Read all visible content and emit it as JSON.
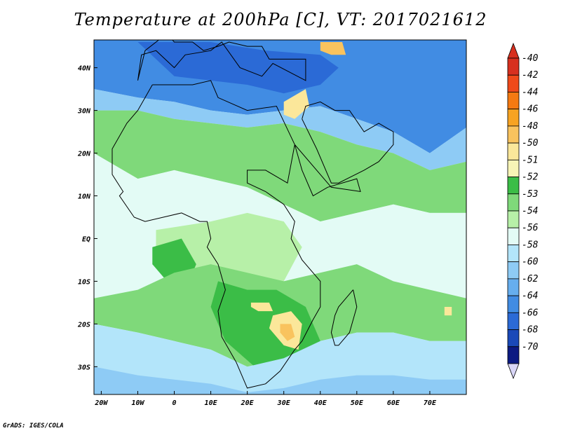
{
  "title": "Temperature at 200hPa [C], VT: 2017021612",
  "credit": "GrADS: IGES/COLA",
  "map": {
    "lon_range": [
      -22,
      80
    ],
    "lat_range": [
      -36.5,
      46.5
    ],
    "lon_ticks": [
      {
        "lon": -20,
        "label": "20W"
      },
      {
        "lon": -10,
        "label": "10W"
      },
      {
        "lon": 0,
        "label": "0"
      },
      {
        "lon": 10,
        "label": "10E"
      },
      {
        "lon": 20,
        "label": "20E"
      },
      {
        "lon": 30,
        "label": "30E"
      },
      {
        "lon": 40,
        "label": "40E"
      },
      {
        "lon": 50,
        "label": "50E"
      },
      {
        "lon": 60,
        "label": "60E"
      },
      {
        "lon": 70,
        "label": "70E"
      }
    ],
    "lat_ticks": [
      {
        "lat": 40,
        "label": "40N"
      },
      {
        "lat": 30,
        "label": "30N"
      },
      {
        "lat": 20,
        "label": "20N"
      },
      {
        "lat": 10,
        "label": "10N"
      },
      {
        "lat": 0,
        "label": "EQ"
      },
      {
        "lat": -10,
        "label": "10S"
      },
      {
        "lat": -20,
        "label": "20S"
      },
      {
        "lat": -30,
        "label": "30S"
      }
    ]
  },
  "colorbar": {
    "levels": [
      {
        "label": "-40",
        "color": "#d7301f"
      },
      {
        "label": "-42",
        "color": "#ef4a1a"
      },
      {
        "label": "-44",
        "color": "#f57a12"
      },
      {
        "label": "-46",
        "color": "#f7a322"
      },
      {
        "label": "-48",
        "color": "#f9c35e"
      },
      {
        "label": "-50",
        "color": "#fbe79a"
      },
      {
        "label": "-51",
        "color": "#f7f4b6"
      },
      {
        "label": "-52",
        "color": "#3bbd47"
      },
      {
        "label": "-53",
        "color": "#7fd97a"
      },
      {
        "label": "-54",
        "color": "#b7f0a8"
      },
      {
        "label": "-56",
        "color": "#e3fbf5"
      },
      {
        "label": "-58",
        "color": "#b3e5fa"
      },
      {
        "label": "-60",
        "color": "#8ecbf5"
      },
      {
        "label": "-62",
        "color": "#66aeee"
      },
      {
        "label": "-64",
        "color": "#418ce3"
      },
      {
        "label": "-66",
        "color": "#2b6ad6"
      },
      {
        "label": "-68",
        "color": "#1a49b8"
      },
      {
        "label": "-70",
        "color": "#0c1a82"
      }
    ],
    "top_arrow_color": "#d7301f",
    "bottom_arrow_color": "#d9d6f7"
  },
  "regions": [
    {
      "name": "north-blue-band",
      "level": "-64",
      "lon": [
        -22,
        80,
        80,
        70,
        60,
        50,
        40,
        30,
        20,
        10,
        0,
        -10,
        -22
      ],
      "lat": [
        46.5,
        46.5,
        26,
        20,
        25,
        28,
        31,
        30,
        29,
        30,
        32,
        33,
        35
      ]
    },
    {
      "name": "north-deep-blue",
      "level": "-66",
      "lon": [
        -10,
        10,
        25,
        40,
        45,
        40,
        30,
        20,
        10,
        0,
        -5
      ],
      "lat": [
        46,
        46,
        44,
        43,
        40,
        36,
        34,
        36,
        37,
        38,
        42
      ]
    },
    {
      "name": "north-light-blue",
      "level": "-60",
      "lon": [
        -22,
        -10,
        0,
        10,
        20,
        30,
        40,
        50,
        60,
        70,
        80,
        80,
        70,
        60,
        50,
        40,
        30,
        20,
        10,
        0,
        -10,
        -22
      ],
      "lat": [
        35,
        33,
        32,
        30,
        29,
        30,
        31,
        28,
        25,
        20,
        26,
        18,
        16,
        20,
        22,
        25,
        27,
        26,
        27,
        28,
        30,
        30
      ]
    },
    {
      "name": "sahel-green-band",
      "level": "-53",
      "lon": [
        -22,
        -10,
        0,
        10,
        20,
        30,
        40,
        50,
        60,
        70,
        80,
        80,
        70,
        60,
        50,
        40,
        30,
        20,
        10,
        0,
        -10,
        -22
      ],
      "lat": [
        30,
        30,
        28,
        27,
        26,
        27,
        25,
        22,
        20,
        16,
        18,
        6,
        6,
        8,
        6,
        4,
        8,
        12,
        14,
        16,
        14,
        20
      ]
    },
    {
      "name": "equator-pale",
      "level": "-56",
      "lon": [
        -22,
        -10,
        0,
        10,
        20,
        30,
        40,
        50,
        60,
        70,
        80,
        80,
        70,
        60,
        50,
        40,
        30,
        20,
        10,
        0,
        -10,
        -22
      ],
      "lat": [
        20,
        14,
        16,
        14,
        12,
        8,
        4,
        6,
        8,
        6,
        6,
        -14,
        -12,
        -10,
        -6,
        -8,
        -10,
        -8,
        -6,
        -8,
        -12,
        -14
      ]
    },
    {
      "name": "central-green",
      "level": "-54",
      "lon": [
        -5,
        10,
        20,
        30,
        35,
        30,
        20,
        10,
        0,
        -5
      ],
      "lat": [
        2,
        4,
        6,
        4,
        -2,
        -10,
        -12,
        -8,
        -6,
        -2
      ]
    },
    {
      "name": "gulf-dark-green",
      "level": "-52",
      "lon": [
        -6,
        2,
        6,
        4,
        -2,
        -6
      ],
      "lat": [
        -2,
        0,
        -6,
        -10,
        -10,
        -6
      ]
    },
    {
      "name": "south-green",
      "level": "-53",
      "lon": [
        -22,
        -10,
        0,
        10,
        20,
        30,
        40,
        50,
        60,
        70,
        80,
        80,
        70,
        60,
        50,
        40,
        30,
        20,
        10,
        0,
        -10,
        -22
      ],
      "lat": [
        -14,
        -12,
        -8,
        -6,
        -8,
        -10,
        -8,
        -6,
        -10,
        -12,
        -14,
        -24,
        -24,
        -22,
        -22,
        -24,
        -28,
        -30,
        -26,
        -24,
        -22,
        -20
      ]
    },
    {
      "name": "southern-africa-green",
      "level": "-52",
      "lon": [
        12,
        20,
        28,
        36,
        40,
        36,
        30,
        22,
        14,
        10
      ],
      "lat": [
        -10,
        -12,
        -12,
        -16,
        -24,
        -30,
        -32,
        -30,
        -24,
        -16
      ]
    },
    {
      "name": "zim-yellow",
      "level": "-50",
      "lon": [
        27,
        32,
        35,
        34,
        30,
        26
      ],
      "lat": [
        -18,
        -17,
        -20,
        -26,
        -25,
        -21
      ]
    },
    {
      "name": "zim-orange",
      "level": "-48",
      "lon": [
        29,
        32,
        33,
        31,
        29
      ],
      "lat": [
        -20,
        -20,
        -23,
        -24,
        -22
      ]
    },
    {
      "name": "zambia-yellow",
      "level": "-50",
      "lon": [
        21,
        26,
        27,
        23,
        21
      ],
      "lat": [
        -15,
        -15,
        -17,
        -17,
        -16
      ]
    },
    {
      "name": "madagascar-east-spot",
      "level": "-50",
      "lon": [
        74,
        76,
        76,
        74
      ],
      "lat": [
        -16,
        -16,
        -18,
        -18
      ]
    },
    {
      "name": "levant-yellow",
      "level": "-50",
      "lon": [
        30,
        36,
        37,
        33,
        30
      ],
      "lat": [
        32,
        35,
        31,
        28,
        29
      ]
    },
    {
      "name": "turkey-yellow",
      "level": "-48",
      "lon": [
        40,
        46,
        47,
        43,
        40
      ],
      "lat": [
        46,
        46,
        43,
        43,
        44
      ]
    },
    {
      "name": "south-lightblue",
      "level": "-58",
      "lon": [
        -22,
        -10,
        0,
        10,
        20,
        30,
        40,
        50,
        60,
        70,
        80,
        80,
        -22
      ],
      "lat": [
        -20,
        -22,
        -24,
        -26,
        -30,
        -28,
        -24,
        -22,
        -22,
        -24,
        -24,
        -36.5,
        -36.5
      ]
    },
    {
      "name": "south-blue",
      "level": "-60",
      "lon": [
        -22,
        -10,
        0,
        10,
        20,
        30,
        40,
        50,
        60,
        70,
        80,
        80,
        -22
      ],
      "lat": [
        -30,
        -32,
        -33,
        -34,
        -36,
        -35,
        -33,
        -32,
        -32,
        -33,
        -33,
        -36.5,
        -36.5
      ]
    }
  ],
  "coast_africa": {
    "lon": [
      -6,
      -10,
      -13,
      -17,
      -17,
      -14,
      -15,
      -11,
      -8,
      -3,
      2,
      7,
      9,
      10,
      9,
      12,
      14,
      12,
      13,
      17,
      20,
      25,
      29,
      33,
      35,
      38,
      40,
      40,
      35,
      32,
      33,
      30,
      25,
      20,
      20,
      25,
      31,
      33,
      43,
      51,
      50,
      42,
      38,
      35,
      33,
      28,
      20,
      12,
      10,
      5,
      0,
      -6
    ],
    "lat": [
      36,
      30,
      27,
      21,
      15,
      11,
      10,
      5,
      4,
      5,
      6,
      4,
      4,
      0,
      -2,
      -6,
      -12,
      -17,
      -23,
      -29,
      -35,
      -34,
      -31,
      -26,
      -24,
      -19,
      -16,
      -10,
      -5,
      0,
      4,
      8,
      11,
      13,
      16,
      16,
      13,
      22,
      12,
      11,
      14,
      12,
      10,
      16,
      22,
      31,
      30,
      33,
      37,
      36,
      36,
      36
    ]
  },
  "coast_madagascar": {
    "lon": [
      49,
      50,
      48,
      45,
      44,
      43,
      44,
      45,
      47,
      49
    ],
    "lat": [
      -12,
      -16,
      -22,
      -25,
      -25,
      -22,
      -18,
      -16,
      -14,
      -12
    ]
  },
  "coast_arabia": {
    "lon": [
      35,
      39,
      43,
      45,
      52,
      56,
      60,
      60,
      56,
      52,
      48,
      44,
      40,
      36,
      35
    ],
    "lat": [
      28,
      21,
      13,
      13,
      16,
      18,
      22,
      25,
      27,
      25,
      30,
      30,
      32,
      31,
      28
    ]
  },
  "coast_europe": {
    "lon": [
      -10,
      -9,
      -5,
      0,
      3,
      10,
      13,
      18,
      24,
      27,
      36,
      36,
      26,
      24,
      20,
      15,
      12,
      8,
      5,
      0,
      -2,
      -8,
      -10
    ],
    "lat": [
      37,
      43,
      44,
      40,
      43,
      44,
      46,
      40,
      38,
      41,
      37,
      42,
      42,
      45,
      45,
      46,
      45,
      44,
      46,
      46,
      48,
      44,
      37
    ]
  }
}
